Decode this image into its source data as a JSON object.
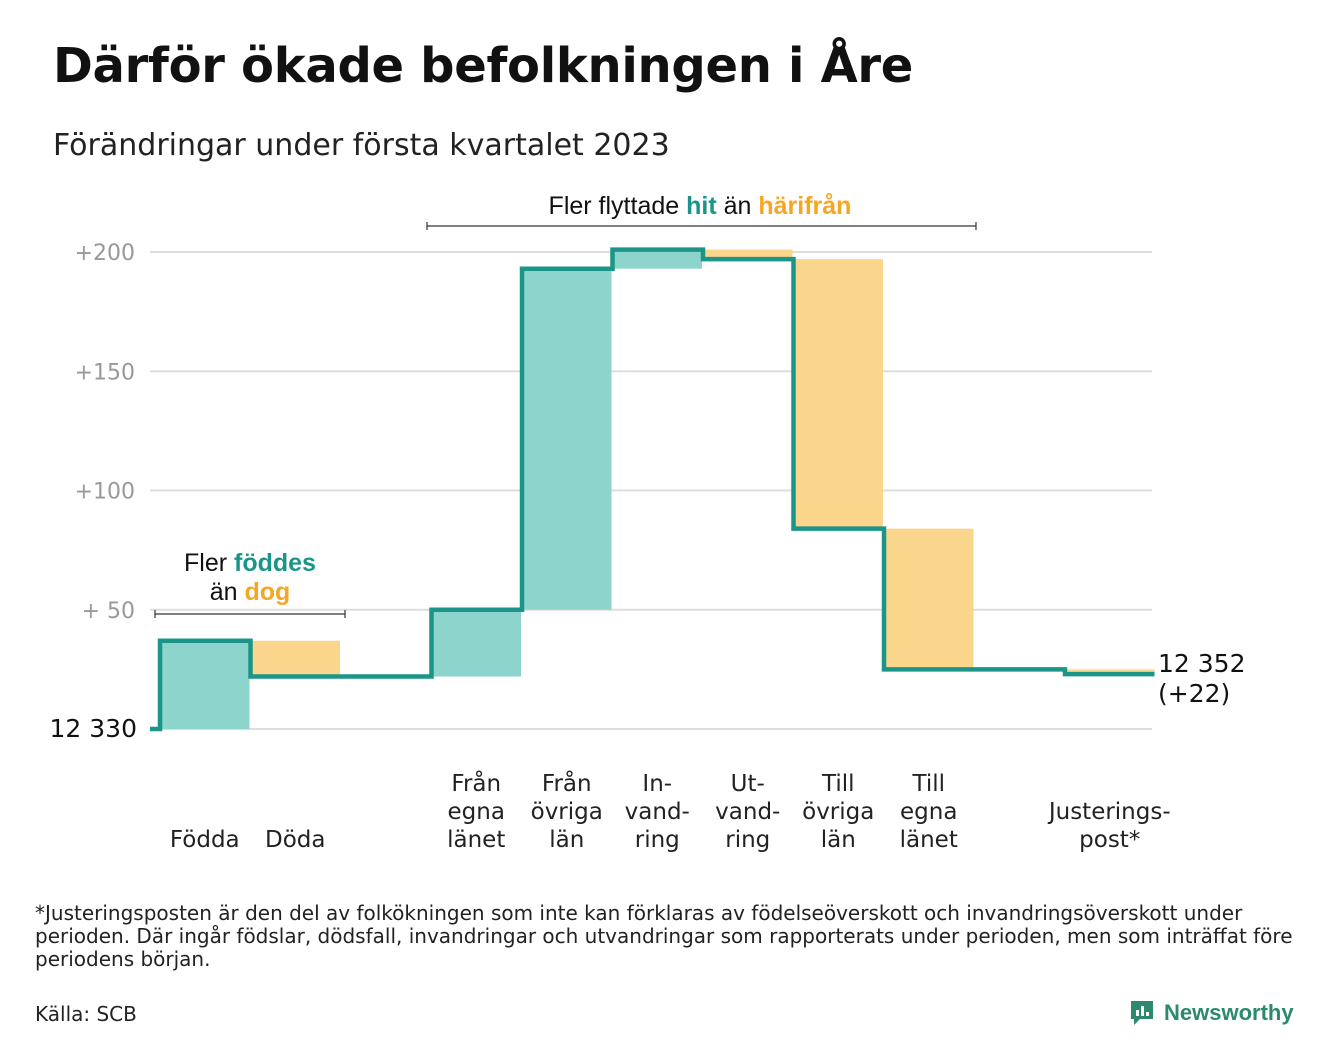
{
  "header": {
    "title": "Därför ökade befolkningen i Åre",
    "subtitle": "Förändringar under första kvartalet 2023"
  },
  "colors": {
    "increase": "#8dd5cc",
    "decrease": "#fad58c",
    "line": "#1a9587",
    "grid": "#dddddd",
    "tick_text": "#999999",
    "hit": "#1a9587",
    "harifran": "#f5a623"
  },
  "chart_data": {
    "type": "waterfall",
    "baseline": 12330,
    "baseline_label": "12 330",
    "ylim": [
      -5,
      205
    ],
    "yticks": [
      {
        "value": 200,
        "label": "+200"
      },
      {
        "value": 150,
        "label": "+150"
      },
      {
        "value": 100,
        "label": "+100"
      },
      {
        "value": 50,
        "label": "+ 50"
      },
      {
        "value": 0,
        "label": ""
      }
    ],
    "steps": [
      {
        "label": [
          "Födda"
        ],
        "change": 37
      },
      {
        "label": [
          "Döda"
        ],
        "change": -15
      },
      {
        "label": [],
        "change": 0
      },
      {
        "label": [
          "Från",
          "egna",
          "länet"
        ],
        "change": 28
      },
      {
        "label": [
          "Från",
          "övriga",
          "län"
        ],
        "change": 143
      },
      {
        "label": [
          "In-",
          "vand-",
          "ring"
        ],
        "change": 8
      },
      {
        "label": [
          "Ut-",
          "vand-",
          "ring"
        ],
        "change": -4
      },
      {
        "label": [
          "Till",
          "övriga",
          "län"
        ],
        "change": -113
      },
      {
        "label": [
          "Till",
          "egna",
          "länet"
        ],
        "change": -59
      },
      {
        "label": [],
        "change": 0
      },
      {
        "label": [
          "Justerings-",
          "post*"
        ],
        "change": -2
      }
    ],
    "end_label": [
      "12 352",
      "(+22)"
    ],
    "annotations": {
      "births": {
        "line1_prefix": "Fler ",
        "line1_highlight": "föddes",
        "line2_prefix": "än ",
        "line2_highlight": "dog"
      },
      "migration": {
        "prefix": "Fler flyttade ",
        "highlight1": "hit",
        "middle": " än ",
        "highlight2": "härifrån"
      }
    }
  },
  "footnote": "*Justeringsposten är den del av folkökningen som inte kan förklaras av födelseöverskott och invandringsöverskott under perioden. Där ingår födslar, dödsfall, invandringar och utvandringar som rapporterats under perioden, men som inträffat före periodens början.",
  "source": "Källa: SCB",
  "brand": {
    "name": "Newsworthy",
    "icon": "newsworthy-logo-icon"
  }
}
